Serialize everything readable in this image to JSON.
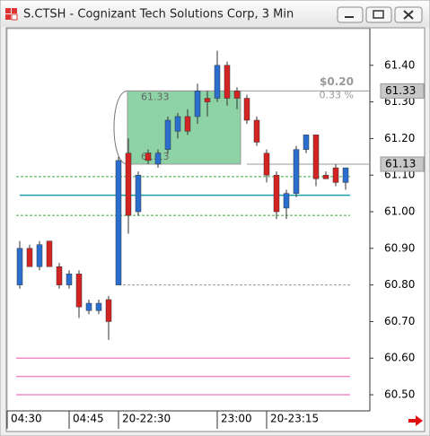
{
  "chart_data": {
    "type": "candlestick",
    "title": "S.CTSH - Cognizant Tech Solutions Corp, 3 Min",
    "categories": [
      "04:30",
      null,
      null,
      null,
      null,
      "04:45",
      null,
      null,
      null,
      null,
      "20-22:30",
      null,
      null,
      null,
      null,
      null,
      null,
      null,
      null,
      null,
      "23:00",
      null,
      null,
      null,
      null,
      "20-23:15",
      null,
      null,
      null,
      null,
      null,
      null,
      null,
      null
    ],
    "open": [
      60.8,
      60.9,
      60.85,
      60.92,
      60.85,
      60.8,
      60.83,
      60.73,
      60.73,
      60.76,
      60.8,
      61.16,
      61.0,
      61.16,
      61.13,
      61.17,
      61.22,
      61.26,
      61.26,
      61.31,
      61.31,
      61.4,
      61.33,
      61.31,
      61.25,
      61.16,
      61.1,
      61.01,
      61.05,
      61.17,
      61.21,
      61.1,
      61.12,
      61.08
    ],
    "high": [
      60.92,
      60.91,
      60.92,
      60.92,
      60.86,
      60.84,
      60.84,
      60.76,
      60.76,
      60.77,
      61.15,
      61.2,
      61.11,
      61.17,
      61.17,
      61.26,
      61.27,
      61.28,
      61.35,
      61.33,
      61.44,
      61.41,
      61.34,
      61.32,
      61.26,
      61.17,
      61.11,
      61.06,
      61.18,
      61.21,
      61.21,
      61.11,
      61.13,
      61.12
    ],
    "low": [
      60.79,
      60.85,
      60.84,
      60.85,
      60.79,
      60.79,
      60.71,
      60.72,
      60.72,
      60.65,
      60.8,
      60.94,
      60.99,
      61.13,
      61.12,
      61.16,
      61.2,
      61.21,
      61.24,
      61.26,
      61.3,
      61.29,
      61.28,
      61.24,
      61.18,
      61.08,
      60.98,
      60.98,
      61.04,
      61.16,
      61.07,
      61.09,
      61.07,
      61.06
    ],
    "close": [
      60.9,
      60.85,
      60.91,
      60.85,
      60.8,
      60.83,
      60.74,
      60.75,
      60.75,
      60.7,
      61.14,
      60.99,
      61.1,
      61.14,
      61.16,
      61.25,
      61.26,
      61.22,
      61.33,
      61.3,
      61.4,
      61.31,
      61.31,
      61.25,
      61.19,
      61.1,
      61.0,
      61.05,
      61.17,
      61.21,
      61.09,
      61.09,
      61.08,
      61.12
    ],
    "up_color": "#2a6fd0",
    "down_color": "#d42323",
    "ylim": [
      60.456,
      61.5
    ],
    "yticks": [
      {
        "value": 61.4,
        "label": "61.40"
      },
      {
        "value": 61.3,
        "label": "61.30"
      },
      {
        "value": 61.2,
        "label": "61.20"
      },
      {
        "value": 61.1,
        "label": "61.10"
      },
      {
        "value": 61.0,
        "label": "61.00"
      },
      {
        "value": 60.9,
        "label": "60.90"
      },
      {
        "value": 60.8,
        "label": "60.80"
      },
      {
        "value": 60.7,
        "label": "60.70"
      },
      {
        "value": 60.6,
        "label": "60.60"
      },
      {
        "value": 60.5,
        "label": "60.50"
      }
    ],
    "levels": [
      {
        "value": 61.096,
        "color": "#3aa83a",
        "dashed": true
      },
      {
        "value": 60.99,
        "color": "#3aa83a",
        "dashed": true
      },
      {
        "value": 61.045,
        "color": "#1aa0b0",
        "dashed": false
      },
      {
        "value": 60.8,
        "color": "#999999",
        "dashed": true
      },
      {
        "value": 60.6,
        "color": "#f08cc8",
        "dashed": false
      },
      {
        "value": 60.55,
        "color": "#f08cc8",
        "dashed": false
      },
      {
        "value": 60.5,
        "color": "#f08cc8",
        "dashed": false
      }
    ],
    "price_tags": [
      {
        "value": 61.33,
        "label": "61.33"
      },
      {
        "value": 61.13,
        "label": "61.13"
      }
    ],
    "measure": {
      "high": {
        "value": 61.33,
        "label": "61.33"
      },
      "low": {
        "value": 61.13,
        "label": "61.13"
      },
      "change": "$0.20",
      "percent": "0.33 %",
      "color": "#5cc080"
    }
  }
}
